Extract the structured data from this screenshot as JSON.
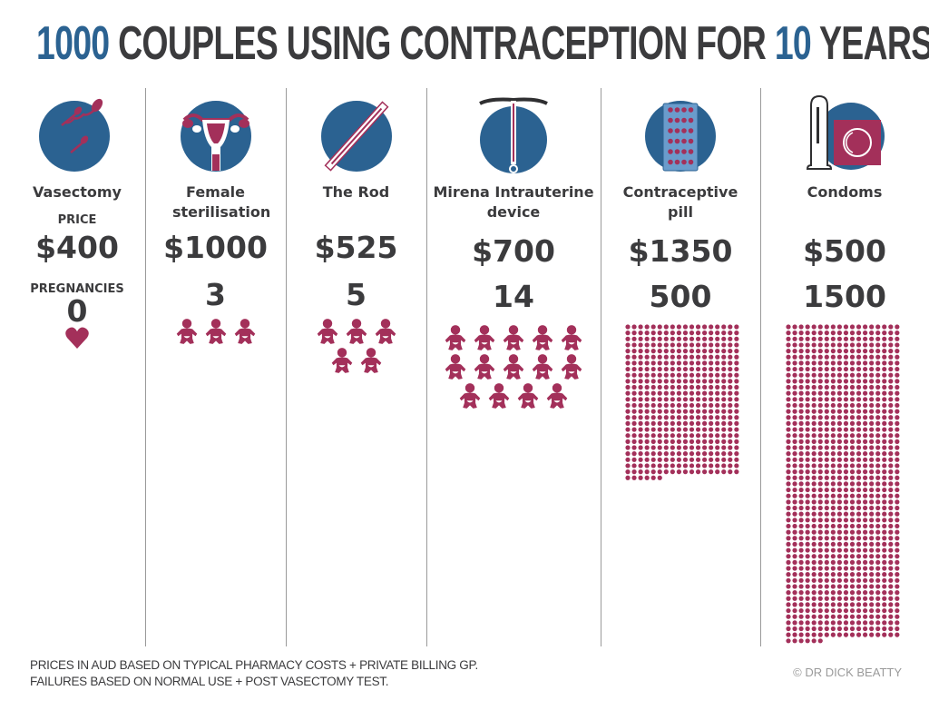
{
  "title": {
    "part1": "1000",
    "part2": " COUPLES USING CONTRACEPTION FOR ",
    "part3": "10",
    "part4": " YEARS"
  },
  "labels": {
    "price": "PRICE",
    "pregnancies": "PREGNANCIES"
  },
  "colors": {
    "blue": "#2b6291",
    "magenta": "#a3305a",
    "text": "#3b3b3d"
  },
  "methods": [
    {
      "name": "Vasectomy",
      "price": "$400",
      "pregnancies": 0,
      "icon": "sperm-icon",
      "pregnancy_symbol": "heart-icon"
    },
    {
      "name": "Female sterilisation",
      "price": "$1000",
      "pregnancies": 3,
      "icon": "uterus-icon",
      "pregnancy_symbol": "baby-icon"
    },
    {
      "name": "The Rod",
      "price": "$525",
      "pregnancies": 5,
      "icon": "implant-rod-icon",
      "pregnancy_symbol": "baby-icon"
    },
    {
      "name": "Mirena Intrauterine device",
      "price": "$700",
      "pregnancies": 14,
      "icon": "iud-icon",
      "pregnancy_symbol": "baby-icon"
    },
    {
      "name": "Contraceptive pill",
      "price": "$1350",
      "pregnancies": 500,
      "icon": "pill-pack-icon",
      "pregnancy_symbol": "dot"
    },
    {
      "name": "Condoms",
      "price": "$500",
      "pregnancies": 1500,
      "icon": "condom-icon",
      "pregnancy_symbol": "dot"
    }
  ],
  "footnote": {
    "line1": "PRICES IN AUD BASED ON TYPICAL PHARMACY COSTS + PRIVATE BILLING GP.",
    "line2": "FAILURES BASED ON NORMAL USE + POST VASECTOMY TEST."
  },
  "credit": "© DR DICK BEATTY"
}
